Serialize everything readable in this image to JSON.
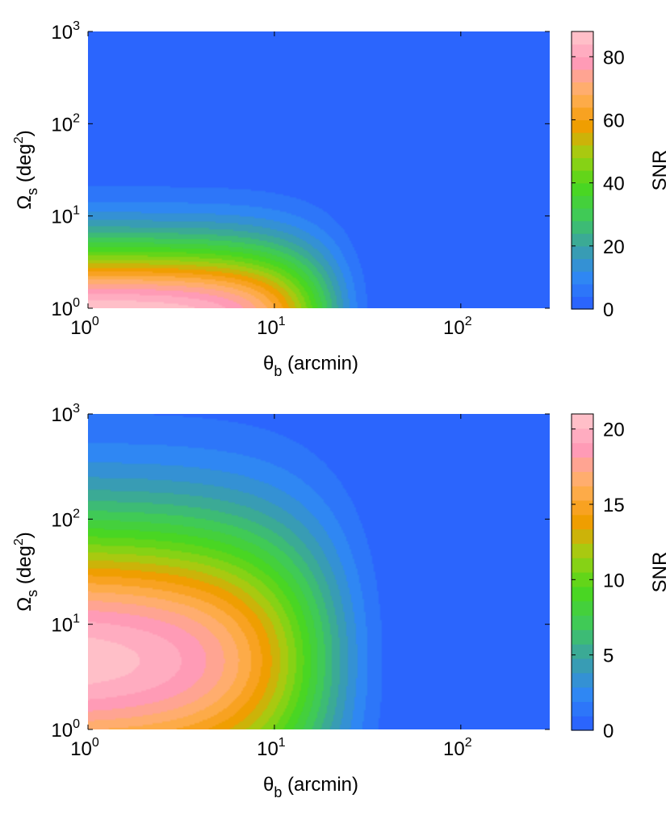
{
  "chart_data": [
    {
      "type": "heatmap",
      "subtype": "filled-contour",
      "x_scale": "log",
      "y_scale": "log",
      "xlim": [
        1,
        300
      ],
      "ylim": [
        1,
        1000
      ],
      "xlabel": {
        "symbol": "θ",
        "sub": "b",
        "text": "(arcmin)"
      },
      "ylabel": {
        "symbol": "Ω",
        "sub": "s",
        "text": "(deg",
        "sup": "2",
        "close": ")"
      },
      "x_ticks": [
        {
          "base": "10",
          "exp": "0"
        },
        {
          "base": "10",
          "exp": "1"
        },
        {
          "base": "10",
          "exp": "2"
        }
      ],
      "y_ticks": [
        {
          "base": "10",
          "exp": "0"
        },
        {
          "base": "10",
          "exp": "1"
        },
        {
          "base": "10",
          "exp": "2"
        },
        {
          "base": "10",
          "exp": "3"
        }
      ],
      "colorbar": {
        "label": "SNR",
        "range": [
          0,
          88
        ],
        "ticks": [
          "0",
          "20",
          "40",
          "60",
          "80"
        ],
        "tick_values": [
          0,
          20,
          40,
          60,
          80
        ],
        "levels": 22
      },
      "field": {
        "peak_snr": 88,
        "peak_x": 1,
        "peak_y": 1,
        "x_scale_arcmin": 18,
        "y_scale_deg2": 3.2,
        "y_exponent": 1.55
      }
    },
    {
      "type": "heatmap",
      "subtype": "filled-contour",
      "x_scale": "log",
      "y_scale": "log",
      "xlim": [
        1,
        300
      ],
      "ylim": [
        1,
        1000
      ],
      "xlabel": {
        "symbol": "θ",
        "sub": "b",
        "text": "(arcmin)"
      },
      "ylabel": {
        "symbol": "Ω",
        "sub": "s",
        "text": "(deg",
        "sup": "2",
        "close": ")"
      },
      "x_ticks": [
        {
          "base": "10",
          "exp": "0"
        },
        {
          "base": "10",
          "exp": "1"
        },
        {
          "base": "10",
          "exp": "2"
        }
      ],
      "y_ticks": [
        {
          "base": "10",
          "exp": "0"
        },
        {
          "base": "10",
          "exp": "1"
        },
        {
          "base": "10",
          "exp": "2"
        },
        {
          "base": "10",
          "exp": "3"
        }
      ],
      "colorbar": {
        "label": "SNR",
        "range": [
          0,
          21
        ],
        "ticks": [
          "0",
          "5",
          "10",
          "15",
          "20"
        ],
        "tick_values": [
          0,
          5,
          10,
          15,
          20
        ],
        "levels": 22
      },
      "field": {
        "peak_snr": 21,
        "peak_x": 1,
        "peak_y": 4.5,
        "x_scale_arcmin": 17,
        "y_sigma_decades": 0.95,
        "x_exponent": 1.4
      }
    }
  ],
  "colormap": [
    "#2a5cff",
    "#2f86f5",
    "#3aa0a8",
    "#3fc95a",
    "#4ad81c",
    "#9fcf12",
    "#f59a00",
    "#ffb060",
    "#ff9ab8",
    "#ffc8cc"
  ]
}
